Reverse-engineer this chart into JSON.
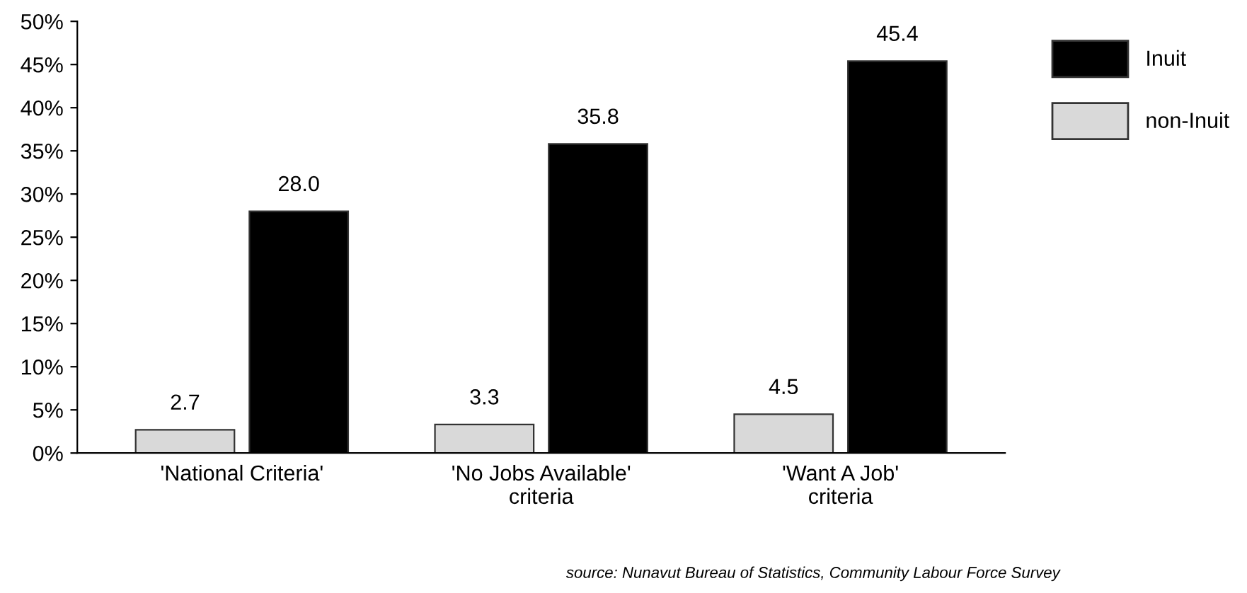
{
  "chart_data": {
    "type": "bar",
    "categories": [
      "'National Criteria'",
      "'No Jobs Available'\ncriteria",
      "'Want A Job'\ncriteria"
    ],
    "series": [
      {
        "name": "non-Inuit",
        "color": "#d9d9d9",
        "values": [
          2.7,
          3.3,
          4.5
        ],
        "value_labels": [
          "2.7",
          "3.3",
          "4.5"
        ]
      },
      {
        "name": "Inuit",
        "color": "#000000",
        "values": [
          28.0,
          35.8,
          45.4
        ],
        "value_labels": [
          "28.0",
          "35.8",
          "45.4"
        ]
      }
    ],
    "ylim": [
      0,
      50
    ],
    "yticks": [
      {
        "value": 0,
        "label": "0%"
      },
      {
        "value": 5,
        "label": "5%"
      },
      {
        "value": 10,
        "label": "10%"
      },
      {
        "value": 15,
        "label": "15%"
      },
      {
        "value": 20,
        "label": "20%"
      },
      {
        "value": 25,
        "label": "25%"
      },
      {
        "value": 30,
        "label": "30%"
      },
      {
        "value": 35,
        "label": "35%"
      },
      {
        "value": 40,
        "label": "40%"
      },
      {
        "value": 45,
        "label": "45%"
      },
      {
        "value": 50,
        "label": "50%"
      }
    ],
    "grid": false,
    "legend": "right",
    "annotations": [
      "source: Nunavut Bureau of Statistics, Community Labour Force Survey"
    ]
  }
}
